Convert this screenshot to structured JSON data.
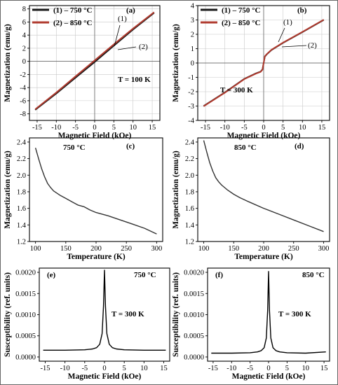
{
  "colors": {
    "series1": "#1a1a1a",
    "series2": "#b03a2e",
    "curve": "#333333"
  },
  "chart_data": [
    {
      "panel": "(a)",
      "type": "line",
      "xlabel": "Magnetic Field (kOe)",
      "ylabel": "Magnetization (emu/g)",
      "xlim": [
        -17,
        17
      ],
      "ylim": [
        -9,
        8.5
      ],
      "xticks": [
        -15,
        -10,
        -5,
        0,
        5,
        10,
        15
      ],
      "yticks": [
        -8,
        -6,
        -4,
        -2,
        0,
        2,
        4,
        6,
        8
      ],
      "grid": true,
      "legend_position": "top-left",
      "annotations": [
        "T = 100 K",
        "(1)",
        "(2)"
      ],
      "series": [
        {
          "name": "(1) – 750 °C",
          "x": [
            -15.5,
            -10,
            -5,
            0,
            5,
            10,
            15.5
          ],
          "y": [
            -7.4,
            -4.9,
            -2.5,
            -0.1,
            2.4,
            4.85,
            7.4
          ]
        },
        {
          "name": "(2) – 850 °C",
          "x": [
            -15.5,
            -10,
            -5,
            0,
            5,
            10,
            15.5
          ],
          "y": [
            -7.3,
            -4.75,
            -2.3,
            0.15,
            2.6,
            5.0,
            7.5
          ]
        }
      ]
    },
    {
      "panel": "(b)",
      "type": "line",
      "xlabel": "Magnetic Field (kOe)",
      "ylabel": "Magnetization (emu/g)",
      "xlim": [
        -17,
        17
      ],
      "ylim": [
        -4,
        4
      ],
      "xticks": [
        -15,
        -10,
        -5,
        0,
        5,
        10,
        15
      ],
      "yticks": [
        -4,
        -3,
        -2,
        -1,
        0,
        1,
        2,
        3,
        4
      ],
      "grid": true,
      "legend_position": "top-left",
      "annotations": [
        "T = 300 K",
        "(1)",
        "(2)"
      ],
      "series": [
        {
          "name": "(1) – 750 °C",
          "x": [
            -15.5,
            -10,
            -5,
            -2,
            -0.8,
            -0.3,
            0,
            0.3,
            0.8,
            2,
            5,
            10,
            15.5
          ],
          "y": [
            -3.0,
            -2.05,
            -1.1,
            -0.72,
            -0.6,
            -0.45,
            0.0,
            0.45,
            0.6,
            0.9,
            1.4,
            2.15,
            3.0
          ]
        },
        {
          "name": "(2) – 850 °C",
          "x": [
            -15.5,
            -10,
            -5,
            -2,
            -0.8,
            -0.3,
            0,
            0.3,
            0.8,
            2,
            5,
            10,
            15.5
          ],
          "y": [
            -3.02,
            -2.07,
            -1.12,
            -0.74,
            -0.62,
            -0.47,
            0.0,
            0.47,
            0.62,
            0.92,
            1.42,
            2.17,
            3.02
          ]
        }
      ]
    },
    {
      "panel": "(c)",
      "type": "line",
      "xlabel": "Temperature (K)",
      "ylabel": "Magnetization (emu/g)",
      "xlim": [
        90,
        310
      ],
      "ylim": [
        1.2,
        2.45
      ],
      "xticks": [
        100,
        150,
        200,
        250,
        300
      ],
      "yticks": [
        1.2,
        1.4,
        1.6,
        1.8,
        2.0,
        2.2,
        2.4
      ],
      "grid": false,
      "annotations": [
        "750 °C"
      ],
      "series": [
        {
          "x": [
            100,
            105,
            110,
            115,
            120,
            125,
            130,
            140,
            150,
            160,
            170,
            180,
            190,
            200,
            220,
            240,
            260,
            280,
            300
          ],
          "y": [
            2.33,
            2.2,
            2.08,
            1.98,
            1.9,
            1.85,
            1.81,
            1.76,
            1.72,
            1.68,
            1.64,
            1.62,
            1.58,
            1.55,
            1.51,
            1.46,
            1.41,
            1.36,
            1.29
          ]
        }
      ]
    },
    {
      "panel": "(d)",
      "type": "line",
      "xlabel": "Temperature (K)",
      "ylabel": "Magnetization (emu/g)",
      "xlim": [
        90,
        310
      ],
      "ylim": [
        1.2,
        2.45
      ],
      "xticks": [
        100,
        150,
        200,
        250,
        300
      ],
      "yticks": [
        1.2,
        1.4,
        1.6,
        1.8,
        2.0,
        2.2,
        2.4
      ],
      "grid": false,
      "annotations": [
        "850 °C"
      ],
      "series": [
        {
          "x": [
            100,
            105,
            110,
            115,
            120,
            125,
            130,
            140,
            150,
            160,
            175,
            200,
            225,
            250,
            275,
            300
          ],
          "y": [
            2.42,
            2.28,
            2.15,
            2.05,
            1.97,
            1.92,
            1.88,
            1.82,
            1.77,
            1.73,
            1.68,
            1.6,
            1.53,
            1.46,
            1.39,
            1.32
          ]
        }
      ]
    },
    {
      "panel": "(e)",
      "type": "line",
      "xlabel": "Magnetic Field (kOe)",
      "ylabel": "Susceptibility (ref. units)",
      "xlim": [
        -16.5,
        16.5
      ],
      "ylim": [
        -0.0001,
        0.0021
      ],
      "xticks": [
        -15,
        -10,
        -5,
        0,
        5,
        10,
        15
      ],
      "yticks": [
        0.0,
        0.0005,
        0.001,
        0.0015,
        0.002
      ],
      "ytick_labels": [
        "0.0000",
        "0.0005",
        "0.0010",
        "0.0015",
        "0.0020"
      ],
      "grid": false,
      "annotations": [
        "750 °C",
        "T = 300 K"
      ],
      "series": [
        {
          "x": [
            -15.5,
            -10,
            -5,
            -3,
            -2,
            -1.2,
            -0.6,
            -0.25,
            0,
            0.25,
            0.6,
            1.2,
            2,
            3,
            5,
            10,
            15.5
          ],
          "y": [
            0.00016,
            0.00016,
            0.00017,
            0.00019,
            0.00022,
            0.0003,
            0.00055,
            0.0012,
            0.00205,
            0.0012,
            0.00055,
            0.0003,
            0.00022,
            0.00019,
            0.00017,
            0.00016,
            0.00016
          ]
        }
      ]
    },
    {
      "panel": "(f)",
      "type": "line",
      "xlabel": "Magnetic Field (kOe)",
      "ylabel": "Susceptibility (ref. units)",
      "xlim": [
        -16.5,
        16.5
      ],
      "ylim": [
        -0.0001,
        0.0021
      ],
      "xticks": [
        -15,
        -10,
        -5,
        0,
        5,
        10,
        15
      ],
      "yticks": [
        0.0,
        0.0005,
        0.001,
        0.0015,
        0.002
      ],
      "ytick_labels": [
        "0.0000",
        "0.0005",
        "0.0010",
        "0.0015",
        "0.0020"
      ],
      "grid": false,
      "annotations": [
        "850 °C",
        "T = 300 K"
      ],
      "series": [
        {
          "x": [
            -15.5,
            -10,
            -5,
            -3,
            -2,
            -1.2,
            -0.6,
            -0.25,
            0,
            0.25,
            0.6,
            1.2,
            2,
            3,
            5,
            10,
            15.5
          ],
          "y": [
            9e-05,
            9e-05,
            0.0001,
            0.00012,
            0.00015,
            0.00022,
            0.00045,
            0.0011,
            0.00202,
            0.0011,
            0.00045,
            0.00022,
            0.00015,
            0.00012,
            0.0001,
            9e-05,
            0.00012
          ]
        }
      ]
    }
  ]
}
